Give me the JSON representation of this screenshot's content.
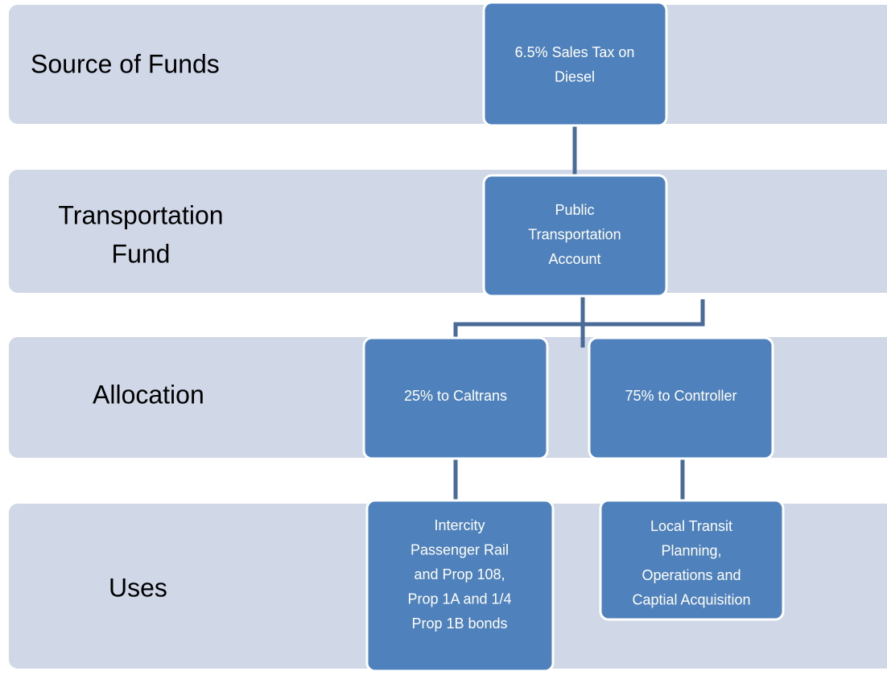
{
  "bands": [
    {
      "lines": [
        "Source of Funds"
      ]
    },
    {
      "lines": [
        "Transportation",
        "Fund"
      ]
    },
    {
      "lines": [
        "Allocation"
      ]
    },
    {
      "lines": [
        "Uses"
      ]
    }
  ],
  "nodes": [
    {
      "lines": [
        "6.5% Sales Tax on",
        "Diesel"
      ]
    },
    {
      "lines": [
        "Public",
        "Transportation",
        "Account"
      ]
    },
    {
      "lines": [
        "25% to Caltrans"
      ]
    },
    {
      "lines": [
        "75% to Controller"
      ]
    },
    {
      "lines": [
        "Intercity",
        "Passenger Rail",
        "and Prop 108,",
        "Prop 1A and 1/4",
        "Prop 1B bonds"
      ]
    },
    {
      "lines": [
        "Local Transit",
        "Planning,",
        "Operations and",
        "Captial Acquisition"
      ]
    }
  ]
}
